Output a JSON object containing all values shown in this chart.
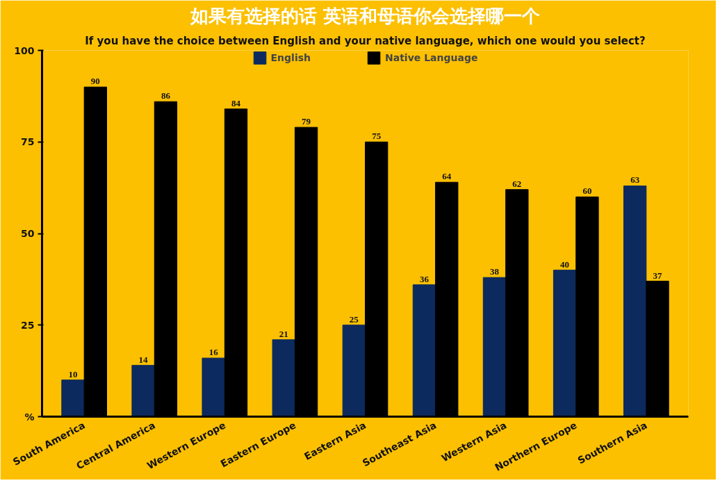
{
  "chart_data": {
    "type": "bar",
    "title": "如果有选择的话 英语和母语你会选择哪一个",
    "subtitle": "If you have the choice between English and your native language, which one would you select?",
    "categories": [
      "South America",
      "Central America",
      "Western Europe",
      "Eastern Europe",
      "Eastern Asia",
      "Southeast Asia",
      "Western Asia",
      "Northern Europe",
      "Southern Asia"
    ],
    "series": [
      {
        "name": "English",
        "color": "#0c2a5e",
        "values": [
          10,
          14,
          16,
          21,
          25,
          36,
          38,
          40,
          63
        ]
      },
      {
        "name": "Native Language",
        "color": "#000000",
        "values": [
          90,
          86,
          84,
          79,
          75,
          64,
          62,
          60,
          37
        ]
      }
    ],
    "ylim": [
      0,
      100
    ],
    "yticks": [
      {
        "value": 0,
        "label": "%"
      },
      25,
      50,
      75,
      100
    ],
    "data_labels": true,
    "legend": "top",
    "grid": false
  }
}
